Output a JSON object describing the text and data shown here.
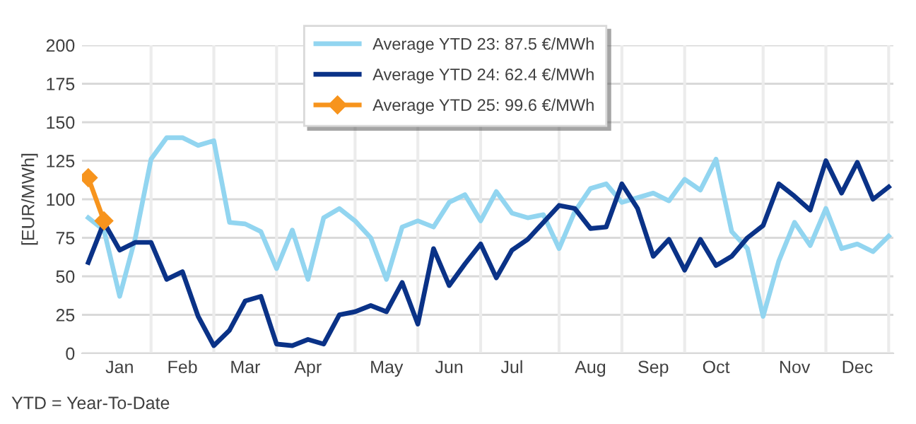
{
  "chart_data": {
    "type": "line",
    "ylabel": "[EUR/MWh]",
    "ylim": [
      0,
      200
    ],
    "yticks": [
      0,
      25,
      50,
      75,
      100,
      125,
      150,
      175,
      200
    ],
    "categories": [
      null,
      null,
      "Jan",
      null,
      null,
      null,
      "Feb",
      null,
      null,
      null,
      "Mar",
      null,
      null,
      null,
      "Apr",
      null,
      null,
      null,
      null,
      "May",
      null,
      null,
      null,
      "Jun",
      null,
      null,
      null,
      "Jul",
      null,
      null,
      null,
      null,
      "Aug",
      null,
      null,
      null,
      "Sep",
      null,
      null,
      null,
      "Oct",
      null,
      null,
      null,
      null,
      "Nov",
      null,
      null,
      null,
      "Dec",
      null,
      null
    ],
    "grid": true,
    "legend": "top",
    "line_style": "solid",
    "series": [
      {
        "name": "Average YTD 23: 87.5 €/MWh",
        "color": "#92d5f0",
        "marker": "none",
        "values": [
          88,
          80,
          37,
          75,
          126,
          140,
          140,
          135,
          138,
          85,
          84,
          79,
          55,
          80,
          48,
          88,
          94,
          86,
          75,
          48,
          82,
          86,
          82,
          98,
          103,
          86,
          105,
          91,
          88,
          90,
          68,
          92,
          107,
          110,
          98,
          101,
          104,
          99,
          113,
          106,
          126,
          79,
          68,
          24,
          60,
          85,
          70,
          94,
          68,
          71,
          66,
          76
        ]
      },
      {
        "name": "Average YTD 24: 62.4 €/MWh",
        "color": "#0a3287",
        "marker": "none",
        "values": [
          59,
          85,
          67,
          72,
          72,
          48,
          53,
          24,
          5,
          15,
          34,
          37,
          6,
          5,
          9,
          6,
          25,
          27,
          31,
          27,
          46,
          19,
          68,
          44,
          58,
          71,
          49,
          67,
          74,
          85,
          96,
          94,
          81,
          82,
          110,
          94,
          63,
          74,
          54,
          74,
          57,
          63,
          75,
          83,
          110,
          102,
          93,
          125,
          104,
          124,
          100,
          108
        ]
      },
      {
        "name": "Average YTD 25: 99.6 €/MWh",
        "color": "#f7941d",
        "marker": "diamond",
        "values": [
          114,
          86,
          null,
          null,
          null,
          null,
          null,
          null,
          null,
          null,
          null,
          null,
          null,
          null,
          null,
          null,
          null,
          null,
          null,
          null,
          null,
          null,
          null,
          null,
          null,
          null,
          null,
          null,
          null,
          null,
          null,
          null,
          null,
          null,
          null,
          null,
          null,
          null,
          null,
          null,
          null,
          null,
          null,
          null,
          null,
          null,
          null,
          null,
          null,
          null,
          null,
          null
        ]
      }
    ],
    "annotations": [
      "YTD = Year-To-Date"
    ]
  }
}
